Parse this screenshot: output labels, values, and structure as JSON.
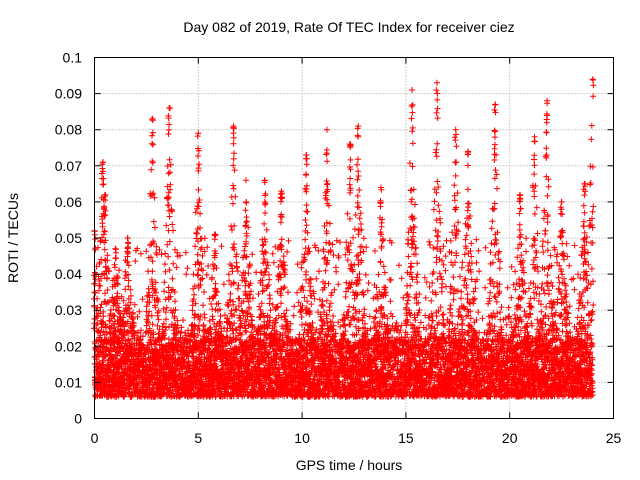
{
  "chart_data": {
    "type": "scatter",
    "title": "Day 082 of 2019, Rate Of TEC Index for receiver ciez",
    "xlabel": "GPS time / hours",
    "ylabel": "ROTI / TECUs",
    "xlim": [
      0,
      25
    ],
    "ylim": [
      0,
      0.1
    ],
    "xticks": [
      0,
      5,
      10,
      15,
      20,
      25
    ],
    "xtick_labels": [
      "0",
      "5",
      "10",
      "15",
      "20",
      "25"
    ],
    "yticks": [
      0,
      0.01,
      0.02,
      0.03,
      0.04,
      0.05,
      0.06,
      0.07,
      0.08,
      0.09,
      0.1
    ],
    "ytick_labels": [
      "0",
      "0.01",
      "0.02",
      "0.03",
      "0.04",
      "0.05",
      "0.06",
      "0.07",
      "0.08",
      "0.09",
      "0.1"
    ],
    "grid": true,
    "marker": "+",
    "color": "#ff0000",
    "series": [
      {
        "name": "ROTI",
        "x_range": [
          0,
          24
        ],
        "sampling_interval_hours": 0.0083,
        "baseline_band": [
          0.006,
          0.022
        ],
        "spikes": [
          {
            "x": 0.0,
            "y": 0.052
          },
          {
            "x": 0.4,
            "y": 0.071
          },
          {
            "x": 0.5,
            "y": 0.062
          },
          {
            "x": 1.0,
            "y": 0.047
          },
          {
            "x": 1.6,
            "y": 0.05
          },
          {
            "x": 2.8,
            "y": 0.083
          },
          {
            "x": 3.6,
            "y": 0.086
          },
          {
            "x": 5.0,
            "y": 0.079
          },
          {
            "x": 5.8,
            "y": 0.051
          },
          {
            "x": 6.7,
            "y": 0.081
          },
          {
            "x": 7.3,
            "y": 0.066
          },
          {
            "x": 8.2,
            "y": 0.066
          },
          {
            "x": 9.0,
            "y": 0.063
          },
          {
            "x": 10.2,
            "y": 0.073
          },
          {
            "x": 11.2,
            "y": 0.08
          },
          {
            "x": 12.3,
            "y": 0.076
          },
          {
            "x": 12.7,
            "y": 0.081
          },
          {
            "x": 13.8,
            "y": 0.064
          },
          {
            "x": 15.3,
            "y": 0.091
          },
          {
            "x": 16.5,
            "y": 0.093
          },
          {
            "x": 17.4,
            "y": 0.08
          },
          {
            "x": 18.0,
            "y": 0.074
          },
          {
            "x": 19.3,
            "y": 0.087
          },
          {
            "x": 20.5,
            "y": 0.062
          },
          {
            "x": 21.2,
            "y": 0.078
          },
          {
            "x": 21.8,
            "y": 0.088
          },
          {
            "x": 22.5,
            "y": 0.06
          },
          {
            "x": 23.6,
            "y": 0.065
          },
          {
            "x": 24.0,
            "y": 0.094
          }
        ]
      }
    ]
  }
}
